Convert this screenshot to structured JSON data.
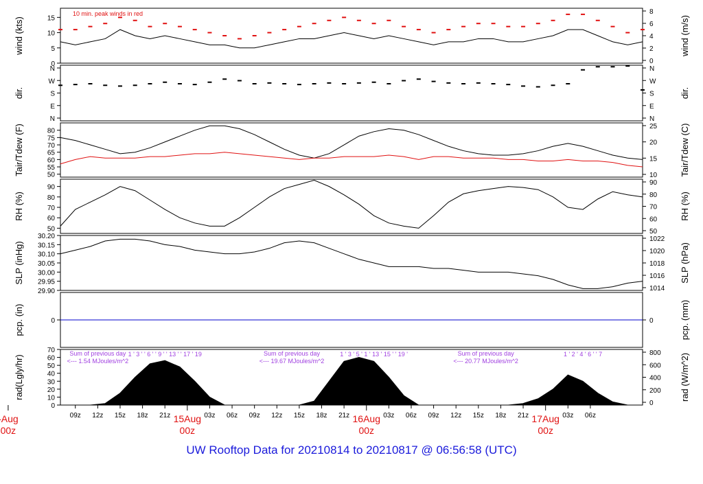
{
  "title": "UW Rooftop Data for 20210814  to  20210817 @ 06:56:58  (UTC)",
  "colors": {
    "line": "#000000",
    "peak": "#e01010",
    "dewpoint": "#e01010",
    "precip": "#0000cc",
    "annotation": "#a040e0",
    "date_label": "#e01010",
    "title": "#1a1adb"
  },
  "chart_data": [
    {
      "id": "wind",
      "type": "line",
      "ylabel_left": "wind (kts)",
      "ylabel_right": "wind (m/s)",
      "ylim": [
        0,
        18
      ],
      "yticks_left": [
        0,
        5,
        10,
        15
      ],
      "yticks_right": [
        "0",
        "2",
        "4",
        "6",
        "8"
      ],
      "annotation": "10 min. peak winds in red",
      "series": [
        {
          "name": "wind",
          "x": [
            0,
            2,
            4,
            6,
            8,
            10,
            12,
            14,
            16,
            18,
            20,
            22,
            24,
            26,
            28,
            30,
            32,
            34,
            36,
            38,
            40,
            42,
            44,
            46,
            48,
            50,
            52,
            54,
            56,
            58,
            60,
            62,
            64,
            66,
            68,
            70,
            72,
            74,
            76,
            78
          ],
          "values": [
            7,
            6,
            7,
            8,
            11,
            9,
            8,
            9,
            8,
            7,
            6,
            6,
            5,
            5,
            6,
            7,
            8,
            8,
            9,
            10,
            9,
            8,
            9,
            8,
            7,
            6,
            7,
            7,
            8,
            8,
            7,
            7,
            8,
            9,
            11,
            11,
            9,
            7,
            6,
            7
          ]
        },
        {
          "name": "10 min. peak winds",
          "x": [
            0,
            2,
            4,
            6,
            8,
            10,
            12,
            14,
            16,
            18,
            20,
            22,
            24,
            26,
            28,
            30,
            32,
            34,
            36,
            38,
            40,
            42,
            44,
            46,
            48,
            50,
            52,
            54,
            56,
            58,
            60,
            62,
            64,
            66,
            68,
            70,
            72,
            74,
            76,
            78
          ],
          "values": [
            11,
            11,
            12,
            13,
            15,
            14,
            12,
            13,
            12,
            11,
            10,
            9,
            8,
            9,
            10,
            11,
            12,
            13,
            14,
            15,
            14,
            13,
            14,
            12,
            11,
            10,
            11,
            12,
            13,
            13,
            12,
            12,
            13,
            14,
            16,
            16,
            14,
            12,
            10,
            11
          ]
        }
      ]
    },
    {
      "id": "dir",
      "type": "scatter",
      "ylabel_left": "dir.",
      "ylabel_right": "dir.",
      "ylim": [
        0,
        360
      ],
      "yticks_left": [
        "N",
        "W",
        "S",
        "E",
        "N"
      ],
      "yticks_right": [
        "N",
        "W",
        "S",
        "E",
        "N"
      ],
      "series": [
        {
          "name": "direction",
          "x": [
            0,
            2,
            4,
            6,
            8,
            10,
            12,
            14,
            16,
            18,
            20,
            22,
            24,
            26,
            28,
            30,
            32,
            34,
            36,
            38,
            40,
            42,
            44,
            46,
            48,
            50,
            52,
            54,
            56,
            58,
            60,
            62,
            64,
            66,
            68,
            70,
            72,
            74,
            76,
            78
          ],
          "values": [
            230,
            235,
            240,
            230,
            225,
            230,
            240,
            250,
            240,
            235,
            250,
            270,
            260,
            240,
            245,
            240,
            235,
            240,
            245,
            240,
            245,
            250,
            240,
            260,
            270,
            255,
            245,
            240,
            245,
            240,
            235,
            225,
            220,
            230,
            240,
            330,
            350,
            350,
            355,
            200
          ]
        }
      ]
    },
    {
      "id": "temp",
      "type": "line",
      "ylabel_left": "Tair/Tdew (F)",
      "ylabel_right": "Tair/Tdew (C)",
      "ylim": [
        48,
        85
      ],
      "yticks_left": [
        50,
        55,
        60,
        65,
        70,
        75,
        80
      ],
      "yticks_right": [
        "10",
        "15",
        "20",
        "25"
      ],
      "series": [
        {
          "name": "Tair",
          "x": [
            0,
            2,
            4,
            6,
            8,
            10,
            12,
            14,
            16,
            18,
            20,
            22,
            24,
            26,
            28,
            30,
            32,
            34,
            36,
            38,
            40,
            42,
            44,
            46,
            48,
            50,
            52,
            54,
            56,
            58,
            60,
            62,
            64,
            66,
            68,
            70,
            72,
            74,
            76,
            78
          ],
          "values": [
            75,
            73,
            70,
            67,
            64,
            65,
            68,
            72,
            76,
            80,
            83,
            83,
            81,
            77,
            72,
            67,
            63,
            61,
            64,
            70,
            76,
            79,
            81,
            80,
            77,
            73,
            69,
            66,
            64,
            63,
            63,
            64,
            66,
            69,
            71,
            69,
            66,
            63,
            61,
            60
          ]
        },
        {
          "name": "Tdew",
          "x": [
            0,
            2,
            4,
            6,
            8,
            10,
            12,
            14,
            16,
            18,
            20,
            22,
            24,
            26,
            28,
            30,
            32,
            34,
            36,
            38,
            40,
            42,
            44,
            46,
            48,
            50,
            52,
            54,
            56,
            58,
            60,
            62,
            64,
            66,
            68,
            70,
            72,
            74,
            76,
            78
          ],
          "values": [
            57,
            60,
            62,
            61,
            61,
            61,
            62,
            62,
            63,
            64,
            64,
            65,
            64,
            63,
            62,
            61,
            60,
            61,
            61,
            62,
            62,
            62,
            63,
            62,
            60,
            62,
            62,
            61,
            61,
            61,
            60,
            60,
            59,
            59,
            60,
            59,
            59,
            58,
            56,
            55
          ]
        }
      ]
    },
    {
      "id": "rh",
      "type": "line",
      "ylabel_left": "RH (%)",
      "ylabel_right": "RH (%)",
      "ylim": [
        45,
        97
      ],
      "yticks_left": [
        50,
        60,
        70,
        80,
        90
      ],
      "yticks_right": [
        "50",
        "60",
        "70",
        "80",
        "90"
      ],
      "series": [
        {
          "name": "RH",
          "x": [
            0,
            2,
            4,
            6,
            8,
            10,
            12,
            14,
            16,
            18,
            20,
            22,
            24,
            26,
            28,
            30,
            32,
            34,
            36,
            38,
            40,
            42,
            44,
            46,
            48,
            50,
            52,
            54,
            56,
            58,
            60,
            62,
            64,
            66,
            68,
            70,
            72,
            74,
            76,
            78
          ],
          "values": [
            52,
            68,
            75,
            82,
            90,
            86,
            77,
            68,
            60,
            55,
            52,
            52,
            60,
            70,
            80,
            88,
            92,
            96,
            90,
            82,
            73,
            62,
            55,
            52,
            50,
            62,
            75,
            83,
            86,
            88,
            90,
            89,
            87,
            80,
            70,
            68,
            78,
            85,
            82,
            80
          ]
        }
      ]
    },
    {
      "id": "slp",
      "type": "line",
      "ylabel_left": "SLP (inHg)",
      "ylabel_right": "SLP (hPa)",
      "ylim": [
        29.9,
        30.2
      ],
      "yticks_left": [
        "29.90",
        "29.95",
        "30.00",
        "30.05",
        "30.10",
        "30.15",
        "30.20"
      ],
      "yticks_right": [
        "1014",
        "1016",
        "1018",
        "1020",
        "1022"
      ],
      "series": [
        {
          "name": "SLP",
          "x": [
            0,
            2,
            4,
            6,
            8,
            10,
            12,
            14,
            16,
            18,
            20,
            22,
            24,
            26,
            28,
            30,
            32,
            34,
            36,
            38,
            40,
            42,
            44,
            46,
            48,
            50,
            52,
            54,
            56,
            58,
            60,
            62,
            64,
            66,
            68,
            70,
            72,
            74,
            76,
            78
          ],
          "values": [
            30.1,
            30.12,
            30.14,
            30.17,
            30.18,
            30.18,
            30.17,
            30.15,
            30.14,
            30.12,
            30.11,
            30.1,
            30.1,
            30.11,
            30.13,
            30.16,
            30.17,
            30.16,
            30.13,
            30.1,
            30.07,
            30.05,
            30.03,
            30.03,
            30.03,
            30.02,
            30.02,
            30.01,
            30.0,
            30.0,
            30.0,
            29.99,
            29.98,
            29.96,
            29.93,
            29.91,
            29.91,
            29.92,
            29.94,
            29.95
          ]
        }
      ]
    },
    {
      "id": "pcp",
      "type": "line",
      "ylabel_left": "pcp. (in)",
      "ylabel_right": "pcp. (mm)",
      "ylim": [
        -1,
        1
      ],
      "yticks_left": [
        0
      ],
      "yticks_right": [
        "0"
      ],
      "series": [
        {
          "name": "precip",
          "x": [
            0,
            78
          ],
          "values": [
            0,
            0
          ]
        }
      ]
    },
    {
      "id": "rad",
      "type": "area",
      "ylabel_left": "rad(Lgly/hr)",
      "ylabel_right": "rad (W/m^2)",
      "ylim": [
        0,
        70
      ],
      "yticks_left": [
        0,
        10,
        20,
        30,
        40,
        50,
        60,
        70
      ],
      "yticks_right": [
        "0",
        "200",
        "400",
        "600",
        "800"
      ],
      "series": [
        {
          "name": "radiation",
          "x": [
            0,
            2,
            4,
            6,
            8,
            10,
            12,
            14,
            16,
            18,
            20,
            22,
            24,
            26,
            28,
            30,
            32,
            34,
            36,
            38,
            40,
            42,
            44,
            46,
            48,
            50,
            52,
            54,
            56,
            58,
            60,
            62,
            64,
            66,
            68,
            70,
            72,
            74,
            76,
            78
          ],
          "values": [
            0,
            0,
            0,
            2,
            15,
            35,
            52,
            56,
            48,
            30,
            10,
            0,
            0,
            0,
            0,
            0,
            0,
            5,
            30,
            55,
            60,
            55,
            35,
            12,
            0,
            0,
            0,
            0,
            0,
            0,
            0,
            2,
            8,
            20,
            38,
            30,
            15,
            4,
            0,
            0
          ]
        }
      ],
      "annotations": [
        {
          "x": 14,
          "y": 65,
          "text": "1 ' 3 ' ' 6 ' ' 9 ' ' 13 ' ' 17 ' 19"
        },
        {
          "x": 42,
          "y": 65,
          "text": "1 ' 3 ' 5 ' 1 ' 13 ' 15 ' ' 19 '"
        },
        {
          "x": 70,
          "y": 65,
          "text": "1 ' 2 ' 4 ' 6 ' ' 7"
        }
      ],
      "daily_sums": [
        {
          "x": 5,
          "label": "Sum of previous day",
          "value": "<--- 1.54 MJoules/m^2"
        },
        {
          "x": 31,
          "label": "Sum of previous day",
          "value": "<--- 19.67 MJoules/m^2"
        },
        {
          "x": 57,
          "label": "Sum of previous day",
          "value": "<--- 20.77 MJoules/m^2"
        }
      ]
    }
  ],
  "x_axis": {
    "xlim": [
      0,
      78
    ],
    "ticks": [
      {
        "x": 2,
        "label": "09z"
      },
      {
        "x": 5,
        "label": "12z"
      },
      {
        "x": 8,
        "label": "15z"
      },
      {
        "x": 11,
        "label": "18z"
      },
      {
        "x": 14,
        "label": "21z"
      },
      {
        "x": 20,
        "label": "03z"
      },
      {
        "x": 23,
        "label": "06z"
      },
      {
        "x": 26,
        "label": "09z"
      },
      {
        "x": 29,
        "label": "12z"
      },
      {
        "x": 32,
        "label": "15z"
      },
      {
        "x": 35,
        "label": "18z"
      },
      {
        "x": 38,
        "label": "21z"
      },
      {
        "x": 44,
        "label": "03z"
      },
      {
        "x": 47,
        "label": "06z"
      },
      {
        "x": 50,
        "label": "09z"
      },
      {
        "x": 53,
        "label": "12z"
      },
      {
        "x": 56,
        "label": "15z"
      },
      {
        "x": 59,
        "label": "18z"
      },
      {
        "x": 62,
        "label": "21z"
      },
      {
        "x": 68,
        "label": "03z"
      },
      {
        "x": 71,
        "label": "06z"
      }
    ],
    "day_labels": [
      {
        "x": -7,
        "date": "-Aug",
        "time": "00z"
      },
      {
        "x": 17,
        "date": "15Aug",
        "time": "00z"
      },
      {
        "x": 41,
        "date": "16Aug",
        "time": "00z"
      },
      {
        "x": 65,
        "date": "17Aug",
        "time": "00z"
      }
    ]
  }
}
